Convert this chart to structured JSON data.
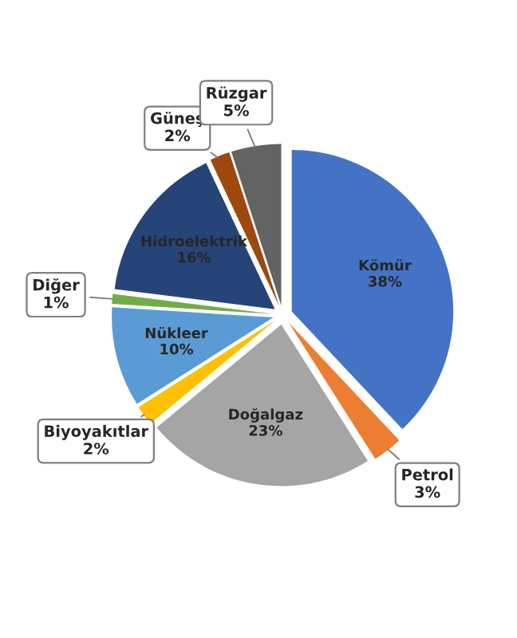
{
  "chart_data": {
    "type": "pie",
    "categories": [
      "Kömür",
      "Petrol",
      "Doğalgaz",
      "Biyoyakıtlar",
      "Nükleer",
      "Diğer",
      "Hidroelektrik",
      "Güneş",
      "Rüzgar"
    ],
    "values": [
      38,
      3,
      23,
      2,
      10,
      1,
      16,
      2,
      5
    ],
    "value_labels": [
      "38%",
      "3%",
      "23%",
      "2%",
      "10%",
      "1%",
      "16%",
      "2%",
      "5%"
    ],
    "colors": [
      "#4472c4",
      "#ed7d31",
      "#a5a5a5",
      "#ffc000",
      "#5b9bd5",
      "#70ad47",
      "#264478",
      "#9e480e",
      "#636363"
    ]
  }
}
